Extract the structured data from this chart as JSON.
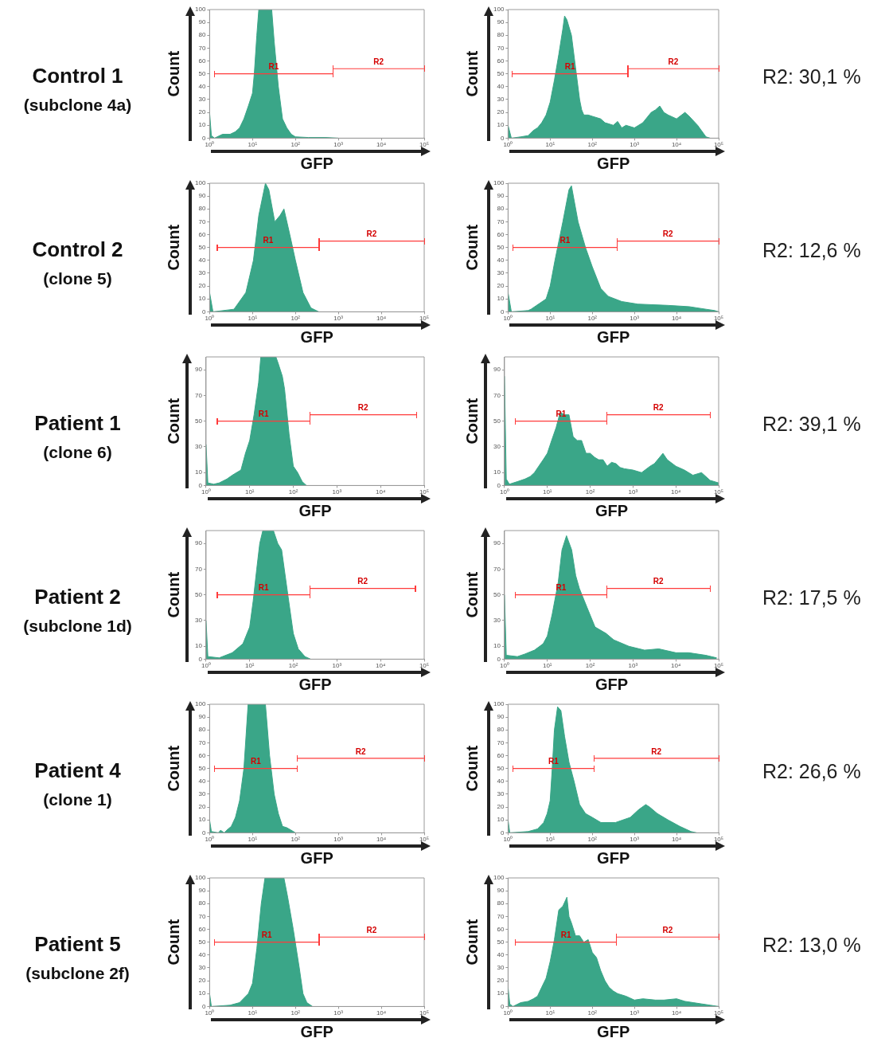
{
  "chart_data": [
    {
      "type": "area",
      "title": "Control 1",
      "subtitle": "(subclone 4a)",
      "xlabel": "GFP",
      "ylabel": "Count",
      "log": "x",
      "xlim": [
        1,
        100000
      ],
      "xticks": [
        {
          "value": 1,
          "label": "10⁰"
        },
        {
          "value": 10,
          "label": "10¹"
        },
        {
          "value": 100,
          "label": "10²"
        },
        {
          "value": 1000,
          "label": "10³"
        },
        {
          "value": 10000,
          "label": "10⁴"
        },
        {
          "value": 100000,
          "label": "10⁵"
        }
      ],
      "ylim": [
        0,
        100
      ],
      "yticks": [
        0,
        10,
        20,
        30,
        40,
        50,
        60,
        70,
        80,
        90,
        100
      ],
      "series": [
        {
          "color": "#3aa688",
          "x": [
            1,
            1.1,
            1.3,
            2,
            3,
            4,
            5,
            6.3,
            8,
            10,
            11,
            12.6,
            14,
            28,
            32,
            40,
            50,
            63,
            80,
            100,
            200,
            500,
            1000
          ],
          "values": [
            20,
            2,
            0,
            3,
            3,
            5,
            8,
            15,
            25,
            35,
            50,
            80,
            100,
            100,
            75,
            40,
            15,
            8,
            3,
            1,
            0.5,
            0.5,
            0
          ]
        },
        {
          "type": "line",
          "name": "R1",
          "color": "#ff3b3b",
          "x": [
            1.3,
            750
          ],
          "values": [
            50,
            50
          ]
        },
        {
          "type": "line",
          "name": "R2",
          "color": "#ff3b3b",
          "x": [
            750,
            100000
          ],
          "values": [
            54,
            54
          ]
        }
      ]
    },
    {
      "type": "area",
      "annotations": [
        "R2: 30,1 %"
      ],
      "xlabel": "GFP",
      "ylabel": "Count",
      "log": "x",
      "xlim": [
        1,
        100000
      ],
      "xticks": [
        {
          "value": 1,
          "label": "10⁰"
        },
        {
          "value": 10,
          "label": "10¹"
        },
        {
          "value": 100,
          "label": "10²"
        },
        {
          "value": 1000,
          "label": "10³"
        },
        {
          "value": 10000,
          "label": "10⁴"
        },
        {
          "value": 100000,
          "label": "10⁵"
        }
      ],
      "ylim": [
        0,
        100
      ],
      "yticks": [
        0,
        10,
        20,
        30,
        40,
        50,
        60,
        70,
        80,
        90,
        100
      ],
      "series": [
        {
          "color": "#3aa688",
          "x": [
            1,
            1.2,
            2,
            3,
            4,
            5,
            6.3,
            8,
            10,
            12.6,
            16,
            20,
            22,
            25,
            32,
            40,
            50,
            56,
            63,
            80,
            100,
            158,
            200,
            316,
            400,
            500,
            631,
            1000,
            1585,
            2500,
            3162,
            4000,
            5000,
            6310,
            10000,
            15850,
            20000,
            31620,
            50000,
            63000
          ],
          "values": [
            10,
            0,
            1,
            2,
            6,
            8,
            12,
            18,
            28,
            45,
            65,
            85,
            95,
            92,
            80,
            55,
            30,
            22,
            18,
            18,
            17,
            15,
            12,
            10,
            13,
            8,
            10,
            8,
            12,
            20,
            22,
            25,
            20,
            18,
            15,
            20,
            17,
            10,
            1,
            0
          ]
        },
        {
          "type": "line",
          "name": "R1",
          "color": "#ff3b3b",
          "x": [
            1.25,
            700
          ],
          "values": [
            50,
            50
          ]
        },
        {
          "type": "line",
          "name": "R2",
          "color": "#ff3b3b",
          "x": [
            700,
            100000
          ],
          "values": [
            54,
            54
          ]
        }
      ]
    },
    {
      "type": "area",
      "title": "Control 2",
      "subtitle": "(clone 5)",
      "xlabel": "GFP",
      "ylabel": "Count",
      "log": "x",
      "xlim": [
        1,
        100000
      ],
      "xticks": [
        {
          "value": 1,
          "label": "10⁰"
        },
        {
          "value": 10,
          "label": "10¹"
        },
        {
          "value": 100,
          "label": "10²"
        },
        {
          "value": 1000,
          "label": "10³"
        },
        {
          "value": 10000,
          "label": "10⁴"
        },
        {
          "value": 100000,
          "label": "10⁵"
        }
      ],
      "ylim": [
        0,
        100
      ],
      "yticks": [
        0,
        10,
        20,
        30,
        40,
        50,
        60,
        70,
        80,
        90,
        100
      ],
      "series": [
        {
          "color": "#3aa688",
          "x": [
            1,
            1.2,
            3.7,
            7,
            10.5,
            14,
            20,
            24,
            33,
            44,
            54,
            74,
            100,
            150,
            230,
            350
          ],
          "values": [
            15,
            0,
            2,
            15,
            40,
            75,
            100,
            95,
            70,
            75,
            80,
            60,
            40,
            15,
            3,
            0
          ]
        },
        {
          "type": "line",
          "name": "R1",
          "color": "#ff3b3b",
          "x": [
            1.5,
            355
          ],
          "values": [
            50,
            50
          ]
        },
        {
          "type": "line",
          "name": "R2",
          "color": "#ff3b3b",
          "x": [
            355,
            100000
          ],
          "values": [
            55,
            55
          ]
        }
      ]
    },
    {
      "type": "area",
      "annotations": [
        "R2: 12,6 %"
      ],
      "xlabel": "GFP",
      "ylabel": "Count",
      "log": "x",
      "xlim": [
        1,
        100000
      ],
      "xticks": [
        {
          "value": 1,
          "label": "10⁰"
        },
        {
          "value": 10,
          "label": "10¹"
        },
        {
          "value": 100,
          "label": "10²"
        },
        {
          "value": 1000,
          "label": "10³"
        },
        {
          "value": 10000,
          "label": "10⁴"
        },
        {
          "value": 100000,
          "label": "10⁵"
        }
      ],
      "ylim": [
        0,
        100
      ],
      "yticks": [
        0,
        10,
        20,
        30,
        40,
        50,
        60,
        70,
        80,
        90,
        100
      ],
      "series": [
        {
          "color": "#3aa688",
          "x": [
            1,
            1.2,
            3,
            3.5,
            8,
            10,
            13,
            20,
            28,
            32,
            46,
            69,
            100,
            160,
            240,
            500,
            1200,
            6300,
            20000,
            50000,
            80000,
            100000
          ],
          "values": [
            15,
            0,
            1,
            2,
            10,
            20,
            40,
            70,
            95,
            98,
            70,
            50,
            35,
            18,
            12,
            8,
            6,
            5,
            4,
            2,
            1,
            0
          ]
        },
        {
          "type": "line",
          "name": "R1",
          "color": "#ff3b3b",
          "x": [
            1.3,
            390
          ],
          "values": [
            50,
            50
          ]
        },
        {
          "type": "line",
          "name": "R2",
          "color": "#ff3b3b",
          "x": [
            390,
            100000
          ],
          "values": [
            55,
            55
          ]
        }
      ]
    },
    {
      "type": "area",
      "title": "Patient 1",
      "subtitle": "(clone 6)",
      "xlabel": "GFP",
      "ylabel": "Count",
      "log": "x",
      "xlim": [
        1,
        100000
      ],
      "xticks": [
        {
          "value": 1,
          "label": "10⁰"
        },
        {
          "value": 10,
          "label": "10¹"
        },
        {
          "value": 100,
          "label": "10²"
        },
        {
          "value": 1000,
          "label": "10³"
        },
        {
          "value": 10000,
          "label": "10⁴"
        },
        {
          "value": 100000,
          "label": "10⁵"
        }
      ],
      "ylim": [
        0,
        100
      ],
      "yticks": [
        0,
        10,
        30,
        50,
        70,
        90
      ],
      "series": [
        {
          "color": "#3aa688",
          "x": [
            1,
            1.1,
            1.5,
            2,
            3,
            4,
            5,
            6.3,
            8,
            10,
            12.6,
            16,
            18,
            40,
            45,
            56,
            63,
            80,
            100,
            126,
            160,
            200
          ],
          "values": [
            32,
            2,
            1,
            2,
            5,
            8,
            10,
            12,
            25,
            35,
            55,
            80,
            100,
            100,
            95,
            85,
            75,
            40,
            15,
            10,
            3,
            0
          ]
        },
        {
          "type": "line",
          "name": "R1",
          "color": "#ff3b3b",
          "x": [
            1.8,
            240
          ],
          "values": [
            50,
            50
          ]
        },
        {
          "type": "line",
          "name": "R2",
          "color": "#ff3b3b",
          "x": [
            240,
            66000
          ],
          "values": [
            55,
            55
          ]
        }
      ]
    },
    {
      "type": "area",
      "annotations": [
        "R2: 39,1 %"
      ],
      "xlabel": "GFP",
      "ylabel": "Count",
      "log": "x",
      "xlim": [
        1,
        100000
      ],
      "xticks": [
        {
          "value": 1,
          "label": "10⁰"
        },
        {
          "value": 10,
          "label": "10¹"
        },
        {
          "value": 100,
          "label": "10²"
        },
        {
          "value": 1000,
          "label": "10³"
        },
        {
          "value": 10000,
          "label": "10⁴"
        },
        {
          "value": 100000,
          "label": "10⁵"
        }
      ],
      "ylim": [
        0,
        100
      ],
      "yticks": [
        0,
        10,
        30,
        50,
        70,
        90
      ],
      "series": [
        {
          "color": "#3aa688",
          "x": [
            1,
            1.1,
            1.3,
            2,
            3,
            4,
            5,
            6.3,
            8,
            10,
            12.6,
            16,
            20,
            25,
            32,
            40,
            50,
            63,
            80,
            100,
            126,
            158,
            200,
            250,
            316,
            400,
            500,
            631,
            1000,
            1585,
            2512,
            3162,
            5000,
            6310,
            10000,
            15850,
            25000,
            39800,
            63000,
            100000
          ],
          "values": [
            85,
            5,
            1,
            3,
            5,
            7,
            10,
            15,
            20,
            25,
            35,
            45,
            57,
            55,
            55,
            38,
            35,
            35,
            25,
            25,
            22,
            20,
            20,
            15,
            18,
            17,
            14,
            13,
            12,
            10,
            15,
            17,
            25,
            20,
            15,
            12,
            8,
            10,
            4,
            2
          ]
        },
        {
          "type": "line",
          "name": "R1",
          "color": "#ff3b3b",
          "x": [
            1.8,
            240
          ],
          "values": [
            50,
            50
          ]
        },
        {
          "type": "line",
          "name": "R2",
          "color": "#ff3b3b",
          "x": [
            240,
            63000
          ],
          "values": [
            55,
            55
          ]
        }
      ]
    },
    {
      "type": "area",
      "title": "Patient 2",
      "subtitle": "(subclone 1d)",
      "xlabel": "GFP",
      "ylabel": "Count",
      "log": "x",
      "xlim": [
        1,
        100000
      ],
      "xticks": [
        {
          "value": 1,
          "label": "10⁰"
        },
        {
          "value": 10,
          "label": "10¹"
        },
        {
          "value": 100,
          "label": "10²"
        },
        {
          "value": 1000,
          "label": "10³"
        },
        {
          "value": 10000,
          "label": "10⁴"
        },
        {
          "value": 100000,
          "label": "10⁵"
        }
      ],
      "ylim": [
        0,
        100
      ],
      "yticks": [
        0,
        10,
        30,
        50,
        70,
        90
      ],
      "series": [
        {
          "color": "#3aa688",
          "x": [
            1,
            1.1,
            2,
            4,
            7,
            10,
            12,
            14.5,
            17,
            20,
            35,
            44,
            54,
            75,
            100,
            130,
            185,
            250
          ],
          "values": [
            30,
            2,
            1,
            5,
            12,
            25,
            45,
            70,
            90,
            100,
            100,
            90,
            85,
            50,
            20,
            8,
            2,
            0
          ]
        },
        {
          "type": "line",
          "name": "R1",
          "color": "#ff3b3b",
          "x": [
            1.8,
            240
          ],
          "values": [
            50,
            50
          ]
        },
        {
          "type": "line",
          "name": "R2",
          "color": "#ff3b3b",
          "x": [
            240,
            63000
          ],
          "values": [
            55,
            55
          ]
        }
      ]
    },
    {
      "type": "area",
      "annotations": [
        "R2: 17,5 %"
      ],
      "xlabel": "GFP",
      "ylabel": "Count",
      "log": "x",
      "xlim": [
        1,
        100000
      ],
      "xticks": [
        {
          "value": 1,
          "label": "10⁰"
        },
        {
          "value": 10,
          "label": "10¹"
        },
        {
          "value": 100,
          "label": "10²"
        },
        {
          "value": 1000,
          "label": "10³"
        },
        {
          "value": 10000,
          "label": "10⁴"
        },
        {
          "value": 100000,
          "label": "10⁵"
        }
      ],
      "ylim": [
        0,
        100
      ],
      "yticks": [
        0,
        10,
        30,
        50,
        70,
        90
      ],
      "series": [
        {
          "color": "#3aa688",
          "x": [
            1,
            1.1,
            2,
            3,
            5,
            8,
            10,
            13,
            18,
            22,
            28,
            37,
            46,
            56,
            85,
            130,
            235,
            355,
            800,
            1860,
            4000,
            10000,
            20000,
            50000,
            90000
          ],
          "values": [
            50,
            3,
            2,
            4,
            7,
            12,
            18,
            35,
            60,
            85,
            96,
            85,
            65,
            55,
            40,
            25,
            20,
            15,
            10,
            7,
            8,
            5,
            5,
            3,
            1
          ]
        },
        {
          "type": "line",
          "name": "R1",
          "color": "#ff3b3b",
          "x": [
            1.8,
            240
          ],
          "values": [
            50,
            50
          ]
        },
        {
          "type": "line",
          "name": "R2",
          "color": "#ff3b3b",
          "x": [
            240,
            63000
          ],
          "values": [
            55,
            55
          ]
        }
      ]
    },
    {
      "type": "area",
      "title": "Patient 4",
      "subtitle": "(clone 1)",
      "xlabel": "GFP",
      "ylabel": "Count",
      "log": "x",
      "xlim": [
        1,
        100000
      ],
      "xticks": [
        {
          "value": 1,
          "label": "10⁰"
        },
        {
          "value": 10,
          "label": "10¹"
        },
        {
          "value": 100,
          "label": "10²"
        },
        {
          "value": 1000,
          "label": "10³"
        },
        {
          "value": 10000,
          "label": "10⁴"
        },
        {
          "value": 100000,
          "label": "10⁵"
        }
      ],
      "ylim": [
        0,
        100
      ],
      "yticks": [
        0,
        10,
        20,
        30,
        40,
        50,
        60,
        70,
        80,
        90,
        100
      ],
      "series": [
        {
          "color": "#3aa688",
          "x": [
            1,
            1.1,
            1.6,
            1.8,
            2.2,
            2.5,
            3.2,
            4,
            5,
            6.3,
            7.9,
            20,
            25,
            32,
            40,
            50,
            63,
            80,
            100
          ],
          "values": [
            10,
            1,
            0,
            2,
            0,
            2,
            5,
            12,
            25,
            50,
            100,
            100,
            60,
            30,
            15,
            5,
            4,
            2,
            0
          ]
        },
        {
          "type": "line",
          "name": "R1",
          "color": "#ff3b3b",
          "x": [
            1.3,
            110
          ],
          "values": [
            50,
            50
          ]
        },
        {
          "type": "line",
          "name": "R2",
          "color": "#ff3b3b",
          "x": [
            110,
            100000
          ],
          "values": [
            58,
            58
          ]
        }
      ]
    },
    {
      "type": "area",
      "annotations": [
        "R2: 26,6 %"
      ],
      "xlabel": "GFP",
      "ylabel": "Count",
      "log": "x",
      "xlim": [
        1,
        100000
      ],
      "xticks": [
        {
          "value": 1,
          "label": "10⁰"
        },
        {
          "value": 10,
          "label": "10¹"
        },
        {
          "value": 100,
          "label": "10²"
        },
        {
          "value": 1000,
          "label": "10³"
        },
        {
          "value": 10000,
          "label": "10⁴"
        },
        {
          "value": 100000,
          "label": "10⁵"
        }
      ],
      "ylim": [
        0,
        100
      ],
      "yticks": [
        0,
        10,
        20,
        30,
        40,
        50,
        60,
        70,
        80,
        90,
        100
      ],
      "series": [
        {
          "color": "#3aa688",
          "x": [
            1,
            1.1,
            3,
            5,
            7,
            8.5,
            10,
            11.2,
            12.6,
            15,
            18,
            22,
            28,
            37,
            50,
            69,
            100,
            160,
            355,
            800,
            1260,
            1860,
            2300,
            3500,
            6300,
            12000,
            22000,
            30000
          ],
          "values": [
            10,
            0,
            1,
            3,
            8,
            15,
            25,
            50,
            80,
            98,
            95,
            75,
            55,
            40,
            22,
            15,
            12,
            8,
            8,
            12,
            18,
            22,
            20,
            15,
            10,
            5,
            1,
            0
          ]
        },
        {
          "type": "line",
          "name": "R1",
          "color": "#ff3b3b",
          "x": [
            1.3,
            110
          ],
          "values": [
            50,
            50
          ]
        },
        {
          "type": "line",
          "name": "R2",
          "color": "#ff3b3b",
          "x": [
            110,
            100000
          ],
          "values": [
            58,
            58
          ]
        }
      ]
    },
    {
      "type": "area",
      "title": "Patient 5",
      "subtitle": "(subclone 2f)",
      "xlabel": "GFP",
      "ylabel": "Count",
      "log": "x",
      "xlim": [
        1,
        100000
      ],
      "xticks": [
        {
          "value": 1,
          "label": "10⁰"
        },
        {
          "value": 10,
          "label": "10¹"
        },
        {
          "value": 100,
          "label": "10²"
        },
        {
          "value": 1000,
          "label": "10³"
        },
        {
          "value": 10000,
          "label": "10⁴"
        },
        {
          "value": 100000,
          "label": "10⁵"
        }
      ],
      "ylim": [
        0,
        100
      ],
      "yticks": [
        0,
        10,
        20,
        30,
        40,
        50,
        60,
        70,
        80,
        90,
        100
      ],
      "series": [
        {
          "color": "#3aa688",
          "x": [
            1,
            1.1,
            3,
            5,
            8,
            10,
            12.6,
            16,
            19.5,
            54,
            66,
            89,
            123,
            150,
            185,
            250
          ],
          "values": [
            10,
            0,
            1,
            3,
            10,
            18,
            45,
            80,
            100,
            100,
            85,
            60,
            30,
            10,
            3,
            0
          ]
        },
        {
          "type": "line",
          "name": "R1",
          "color": "#ff3b3b",
          "x": [
            1.3,
            355
          ],
          "values": [
            50,
            50
          ]
        },
        {
          "type": "line",
          "name": "R2",
          "color": "#ff3b3b",
          "x": [
            355,
            100000
          ],
          "values": [
            54,
            54
          ]
        }
      ]
    },
    {
      "type": "area",
      "annotations": [
        "R2: 13,0 %"
      ],
      "xlabel": "GFP",
      "ylabel": "Count",
      "log": "x",
      "xlim": [
        1,
        100000
      ],
      "xticks": [
        {
          "value": 1,
          "label": "10⁰"
        },
        {
          "value": 10,
          "label": "10¹"
        },
        {
          "value": 100,
          "label": "10²"
        },
        {
          "value": 1000,
          "label": "10³"
        },
        {
          "value": 10000,
          "label": "10⁴"
        },
        {
          "value": 100000,
          "label": "10⁵"
        }
      ],
      "ylim": [
        0,
        100
      ],
      "yticks": [
        0,
        10,
        20,
        30,
        40,
        50,
        60,
        70,
        80,
        90,
        100
      ],
      "series": [
        {
          "color": "#3aa688",
          "x": [
            1,
            1.1,
            1.3,
            2,
            3,
            4,
            5,
            6.3,
            8,
            10,
            12.6,
            16,
            20,
            25,
            28,
            32,
            40,
            50,
            63,
            80,
            100,
            126,
            158,
            200,
            250,
            316,
            400,
            631,
            1000,
            1585,
            3162,
            5000,
            10000,
            15850,
            25000,
            39800,
            63000,
            100000
          ],
          "values": [
            15,
            2,
            0,
            3,
            4,
            6,
            8,
            15,
            22,
            35,
            52,
            75,
            78,
            85,
            70,
            65,
            55,
            55,
            50,
            52,
            42,
            38,
            28,
            20,
            15,
            12,
            10,
            8,
            5,
            6,
            5,
            5,
            6,
            4,
            3,
            2,
            1,
            0
          ]
        },
        {
          "type": "line",
          "name": "R1",
          "color": "#ff3b3b",
          "x": [
            1.5,
            375
          ],
          "values": [
            50,
            50
          ]
        },
        {
          "type": "line",
          "name": "R2",
          "color": "#ff3b3b",
          "x": [
            375,
            100000
          ],
          "values": [
            54,
            54
          ]
        }
      ]
    }
  ]
}
